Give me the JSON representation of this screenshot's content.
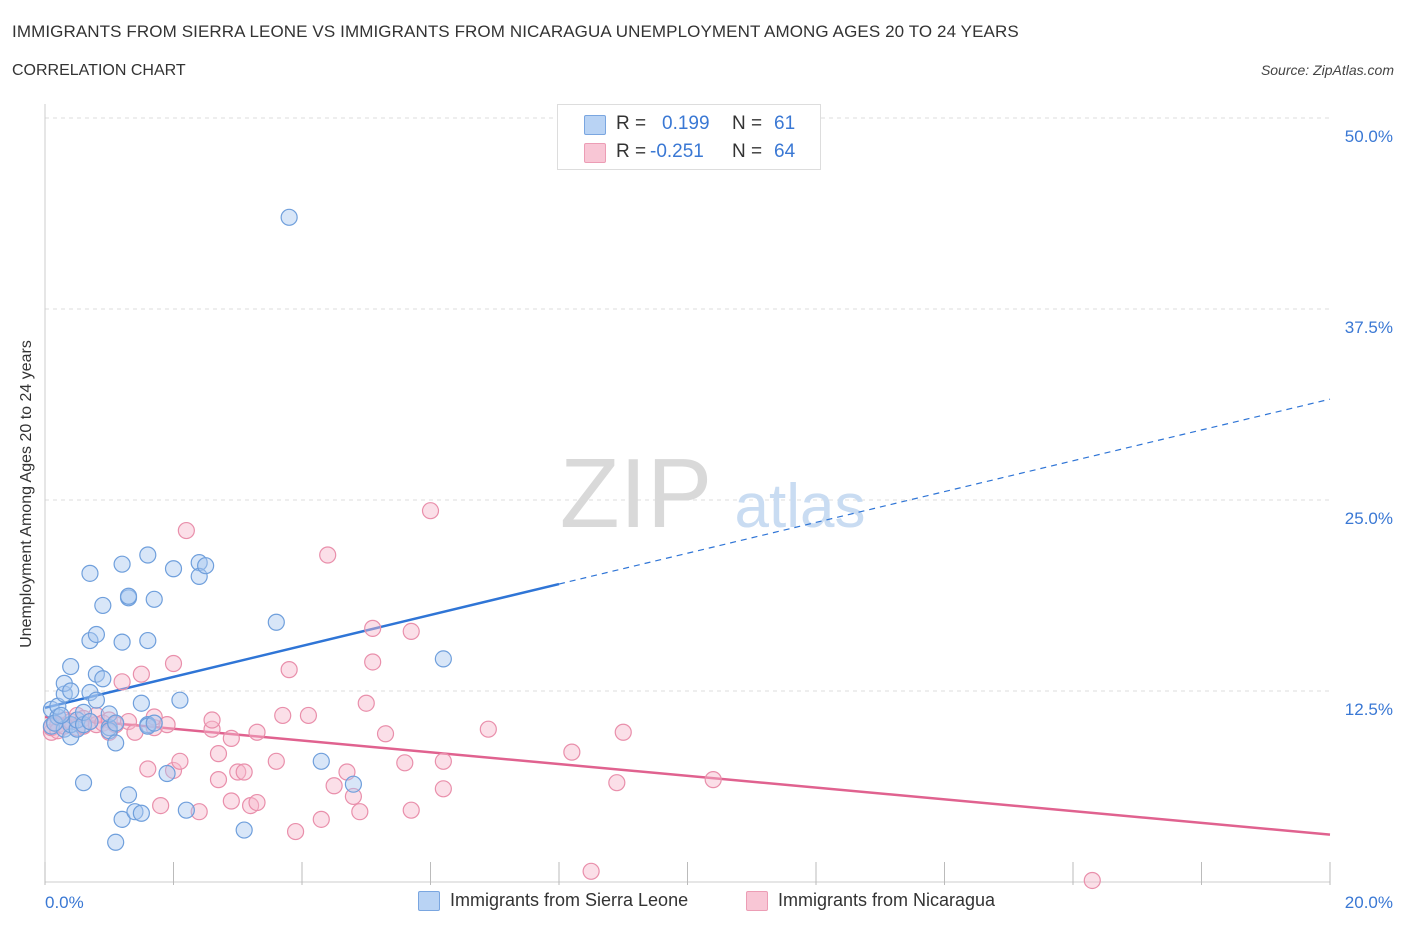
{
  "header": {
    "title": "IMMIGRANTS FROM SIERRA LEONE VS IMMIGRANTS FROM NICARAGUA UNEMPLOYMENT AMONG AGES 20 TO 24 YEARS",
    "subtitle": "CORRELATION CHART",
    "source": "Source: ZipAtlas.com"
  },
  "watermark": {
    "zip": "ZIP",
    "atlas": "atlas"
  },
  "legend": {
    "r_label": "R =",
    "n_label": "N =",
    "series": [
      {
        "r": "0.199",
        "n": "61"
      },
      {
        "r": "-0.251",
        "n": "64"
      }
    ]
  },
  "colors": {
    "blue_fill": "#a9c8f0",
    "blue_stroke": "#6f9fdc",
    "blue_line": "#2f75d6",
    "pink_fill": "#f6b8cb",
    "pink_stroke": "#e98fab",
    "pink_line": "#e0628f",
    "tick_label": "#3a78d4",
    "grid": "#dddddd"
  },
  "chart_data": {
    "type": "scatter",
    "title": "IMMIGRANTS FROM SIERRA LEONE VS IMMIGRANTS FROM NICARAGUA UNEMPLOYMENT AMONG AGES 20 TO 24 YEARS",
    "subtitle": "CORRELATION CHART",
    "xlabel": "",
    "ylabel": "Unemployment Among Ages 20 to 24 years",
    "xlim": [
      0,
      20
    ],
    "ylim": [
      0,
      50
    ],
    "x_tick_labels": [
      "0.0%",
      "20.0%"
    ],
    "y_ticks": [
      12.5,
      25.0,
      37.5,
      50.0
    ],
    "y_tick_labels": [
      "12.5%",
      "25.0%",
      "37.5%",
      "50.0%"
    ],
    "grid": "horizontal dashed",
    "legend_placement": "top-center and bottom",
    "series": [
      {
        "name": "Immigrants from Sierra Leone",
        "color": "blue",
        "r": 0.199,
        "n": 61,
        "trend": {
          "x": [
            0,
            8
          ],
          "y": [
            11.4,
            19.5
          ],
          "dashed_to": {
            "x": 20,
            "y": 31.6
          }
        },
        "points": [
          [
            0.1,
            10.2
          ],
          [
            0.1,
            11.3
          ],
          [
            0.2,
            10.8
          ],
          [
            0.2,
            11.5
          ],
          [
            0.3,
            10.0
          ],
          [
            0.3,
            12.3
          ],
          [
            0.3,
            13.0
          ],
          [
            0.4,
            9.5
          ],
          [
            0.4,
            10.3
          ],
          [
            0.4,
            12.5
          ],
          [
            0.4,
            14.1
          ],
          [
            0.5,
            10.0
          ],
          [
            0.5,
            10.6
          ],
          [
            0.6,
            10.3
          ],
          [
            0.6,
            11.1
          ],
          [
            0.7,
            10.5
          ],
          [
            0.7,
            12.4
          ],
          [
            0.7,
            15.8
          ],
          [
            0.7,
            20.2
          ],
          [
            0.8,
            11.9
          ],
          [
            0.8,
            16.2
          ],
          [
            0.8,
            13.6
          ],
          [
            0.9,
            13.3
          ],
          [
            0.9,
            18.1
          ],
          [
            0.6,
            6.5
          ],
          [
            1.0,
            10.1
          ],
          [
            1.0,
            11.0
          ],
          [
            1.0,
            9.9
          ],
          [
            1.1,
            10.4
          ],
          [
            1.1,
            9.1
          ],
          [
            1.1,
            2.6
          ],
          [
            1.2,
            20.8
          ],
          [
            1.2,
            4.1
          ],
          [
            1.2,
            15.7
          ],
          [
            1.3,
            18.6
          ],
          [
            1.3,
            18.7
          ],
          [
            1.3,
            5.7
          ],
          [
            1.4,
            4.6
          ],
          [
            1.5,
            4.5
          ],
          [
            1.5,
            11.7
          ],
          [
            1.6,
            15.8
          ],
          [
            1.6,
            21.4
          ],
          [
            1.6,
            10.3
          ],
          [
            1.6,
            10.2
          ],
          [
            1.7,
            18.5
          ],
          [
            1.7,
            10.4
          ],
          [
            1.9,
            7.1
          ],
          [
            2.0,
            20.5
          ],
          [
            2.1,
            11.9
          ],
          [
            2.2,
            4.7
          ],
          [
            2.4,
            20.9
          ],
          [
            2.4,
            20.0
          ],
          [
            2.5,
            20.7
          ],
          [
            3.1,
            3.4
          ],
          [
            3.6,
            17.0
          ],
          [
            3.8,
            43.5
          ],
          [
            4.3,
            7.9
          ],
          [
            4.8,
            6.4
          ],
          [
            6.2,
            14.6
          ],
          [
            0.15,
            10.4
          ],
          [
            0.25,
            10.9
          ]
        ]
      },
      {
        "name": "Immigrants from Nicaragua",
        "color": "pink",
        "r": -0.251,
        "n": 64,
        "trend": {
          "x": [
            0,
            20
          ],
          "y": [
            10.8,
            3.1
          ]
        },
        "points": [
          [
            0.1,
            9.8
          ],
          [
            0.1,
            10.1
          ],
          [
            0.2,
            10.3
          ],
          [
            0.2,
            9.9
          ],
          [
            0.3,
            10.6
          ],
          [
            0.3,
            10.2
          ],
          [
            0.4,
            10.5
          ],
          [
            0.5,
            10.1
          ],
          [
            0.5,
            10.9
          ],
          [
            0.6,
            10.7
          ],
          [
            0.6,
            10.2
          ],
          [
            0.7,
            10.5
          ],
          [
            0.8,
            10.3
          ],
          [
            0.8,
            10.9
          ],
          [
            0.9,
            10.4
          ],
          [
            1.0,
            10.6
          ],
          [
            1.0,
            9.8
          ],
          [
            1.1,
            10.3
          ],
          [
            1.2,
            13.1
          ],
          [
            1.3,
            10.5
          ],
          [
            1.4,
            9.8
          ],
          [
            1.5,
            13.6
          ],
          [
            1.6,
            7.4
          ],
          [
            1.7,
            10.1
          ],
          [
            1.7,
            10.8
          ],
          [
            1.8,
            5.0
          ],
          [
            1.9,
            10.3
          ],
          [
            2.0,
            7.3
          ],
          [
            2.0,
            14.3
          ],
          [
            2.1,
            7.9
          ],
          [
            2.2,
            23.0
          ],
          [
            2.4,
            4.6
          ],
          [
            2.6,
            10.0
          ],
          [
            2.6,
            10.6
          ],
          [
            2.7,
            6.7
          ],
          [
            2.7,
            8.4
          ],
          [
            2.9,
            9.4
          ],
          [
            2.9,
            5.3
          ],
          [
            3.0,
            7.2
          ],
          [
            3.1,
            7.2
          ],
          [
            3.2,
            5.0
          ],
          [
            3.3,
            5.2
          ],
          [
            3.3,
            9.8
          ],
          [
            3.6,
            7.9
          ],
          [
            3.7,
            10.9
          ],
          [
            3.8,
            13.9
          ],
          [
            3.9,
            3.3
          ],
          [
            4.1,
            10.9
          ],
          [
            4.3,
            4.1
          ],
          [
            4.4,
            21.4
          ],
          [
            4.5,
            6.3
          ],
          [
            4.7,
            7.2
          ],
          [
            4.8,
            5.6
          ],
          [
            4.9,
            4.6
          ],
          [
            5.0,
            11.7
          ],
          [
            5.1,
            16.6
          ],
          [
            5.1,
            14.4
          ],
          [
            5.3,
            9.7
          ],
          [
            5.6,
            7.8
          ],
          [
            5.7,
            4.7
          ],
          [
            5.7,
            16.4
          ],
          [
            6.0,
            24.3
          ],
          [
            6.2,
            6.1
          ],
          [
            6.2,
            7.9
          ]
        ],
        "extra_points": [
          [
            6.9,
            10.0
          ],
          [
            8.2,
            8.5
          ],
          [
            8.5,
            0.7
          ],
          [
            8.9,
            6.5
          ],
          [
            9.0,
            9.8
          ],
          [
            10.4,
            6.7
          ],
          [
            16.3,
            0.1
          ]
        ]
      }
    ]
  },
  "bottom_legend": [
    {
      "label": "Immigrants from Sierra Leone"
    },
    {
      "label": "Immigrants from Nicaragua"
    }
  ]
}
